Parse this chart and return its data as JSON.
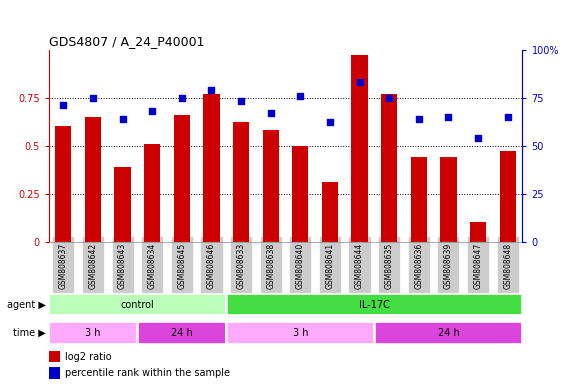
{
  "title": "GDS4807 / A_24_P40001",
  "samples": [
    "GSM808637",
    "GSM808642",
    "GSM808643",
    "GSM808634",
    "GSM808645",
    "GSM808646",
    "GSM808633",
    "GSM808638",
    "GSM808640",
    "GSM808641",
    "GSM808644",
    "GSM808635",
    "GSM808636",
    "GSM808639",
    "GSM808647",
    "GSM808648"
  ],
  "log2_ratio": [
    0.6,
    0.65,
    0.39,
    0.51,
    0.66,
    0.77,
    0.62,
    0.58,
    0.5,
    0.31,
    0.97,
    0.77,
    0.44,
    0.44,
    0.1,
    0.47
  ],
  "percentile": [
    71,
    75,
    64,
    68,
    75,
    79,
    73,
    67,
    76,
    62,
    83,
    75,
    64,
    65,
    54,
    65
  ],
  "bar_color": "#cc0000",
  "dot_color": "#0000cc",
  "ylim_left": [
    0,
    1.0
  ],
  "ylim_right": [
    0,
    100
  ],
  "yticks_left": [
    0,
    0.25,
    0.5,
    0.75
  ],
  "ytick_labels_left": [
    "0",
    "0.25",
    "0.5",
    "0.75"
  ],
  "yticks_right": [
    0,
    25,
    50,
    75,
    100
  ],
  "ytick_labels_right": [
    "0",
    "25",
    "50",
    "75",
    "100%"
  ],
  "agent_groups": [
    {
      "label": "control",
      "start": 0,
      "end": 6,
      "color": "#bbffbb"
    },
    {
      "label": "IL-17C",
      "start": 6,
      "end": 16,
      "color": "#44dd44"
    }
  ],
  "time_groups": [
    {
      "label": "3 h",
      "start": 0,
      "end": 3,
      "color": "#ffaaff"
    },
    {
      "label": "24 h",
      "start": 3,
      "end": 6,
      "color": "#dd44dd"
    },
    {
      "label": "3 h",
      "start": 6,
      "end": 11,
      "color": "#ffaaff"
    },
    {
      "label": "24 h",
      "start": 11,
      "end": 16,
      "color": "#dd44dd"
    }
  ],
  "legend_bar_label": "log2 ratio",
  "legend_dot_label": "percentile rank within the sample",
  "background_color": "#ffffff",
  "tick_label_color_left": "#cc0000",
  "tick_label_color_right": "#0000cc",
  "agent_label": "agent",
  "time_label": "time",
  "xticklabel_bg": "#cccccc"
}
